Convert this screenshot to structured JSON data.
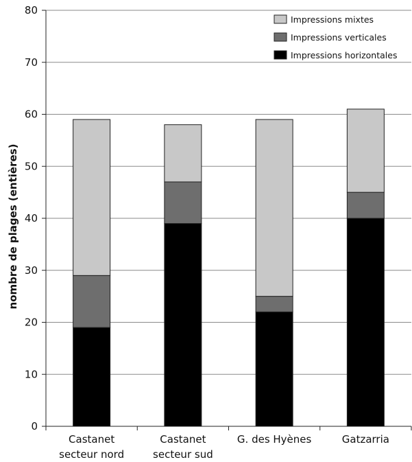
{
  "chart_data": {
    "type": "bar",
    "stacked": true,
    "title": "",
    "xlabel": "",
    "ylabel": "nombre de plages (entières)",
    "ylim": [
      0,
      80
    ],
    "yticks": [
      0,
      10,
      20,
      30,
      40,
      50,
      60,
      70,
      80
    ],
    "grid": true,
    "legend_position": "top-right",
    "categories": [
      [
        "Castanet",
        "secteur nord"
      ],
      [
        "Castanet",
        "secteur sud"
      ],
      [
        "G. des Hyènes"
      ],
      [
        "Gatzarria"
      ]
    ],
    "series": [
      {
        "name": "Impressions horizontales",
        "color": "#000000",
        "values": [
          19,
          39,
          22,
          40
        ]
      },
      {
        "name": "Impressions verticales",
        "color": "#6e6e6e",
        "values": [
          10,
          8,
          3,
          5
        ]
      },
      {
        "name": "Impressions mixtes",
        "color": "#c8c8c8",
        "values": [
          30,
          11,
          34,
          16
        ]
      }
    ],
    "legend_order": [
      2,
      1,
      0
    ]
  }
}
